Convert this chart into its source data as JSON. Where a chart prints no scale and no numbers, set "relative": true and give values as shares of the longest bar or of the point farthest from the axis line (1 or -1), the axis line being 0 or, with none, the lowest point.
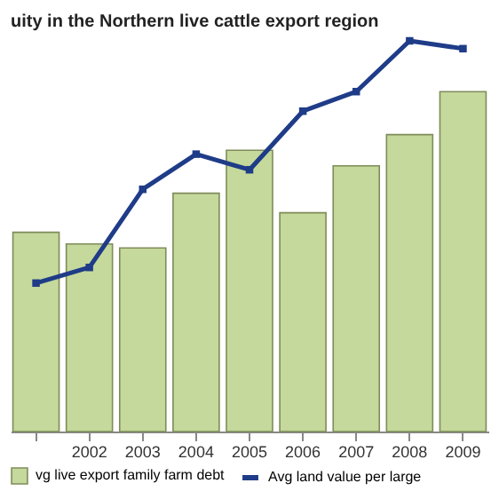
{
  "chart_data": {
    "type": "bar",
    "title": "uity in the Northern live cattle export region",
    "relative": true,
    "categories": [
      null,
      "2002",
      "2003",
      "2004",
      "2005",
      "2006",
      "2007",
      "2008",
      "2009"
    ],
    "series": [
      {
        "name": "vg live export family farm debt",
        "color": "#c4d99b",
        "values": [
          0.51,
          0.48,
          0.47,
          0.61,
          0.72,
          0.56,
          0.68,
          0.76,
          0.87
        ]
      },
      {
        "name": "Avg land value per large",
        "type": "line",
        "color": "#1f3c88",
        "marker": "square",
        "values": [
          0.38,
          0.42,
          0.62,
          0.71,
          0.67,
          0.82,
          0.87,
          1.0,
          0.98
        ]
      }
    ],
    "legend": "bottom",
    "grid": false,
    "tick_labels": "x"
  }
}
